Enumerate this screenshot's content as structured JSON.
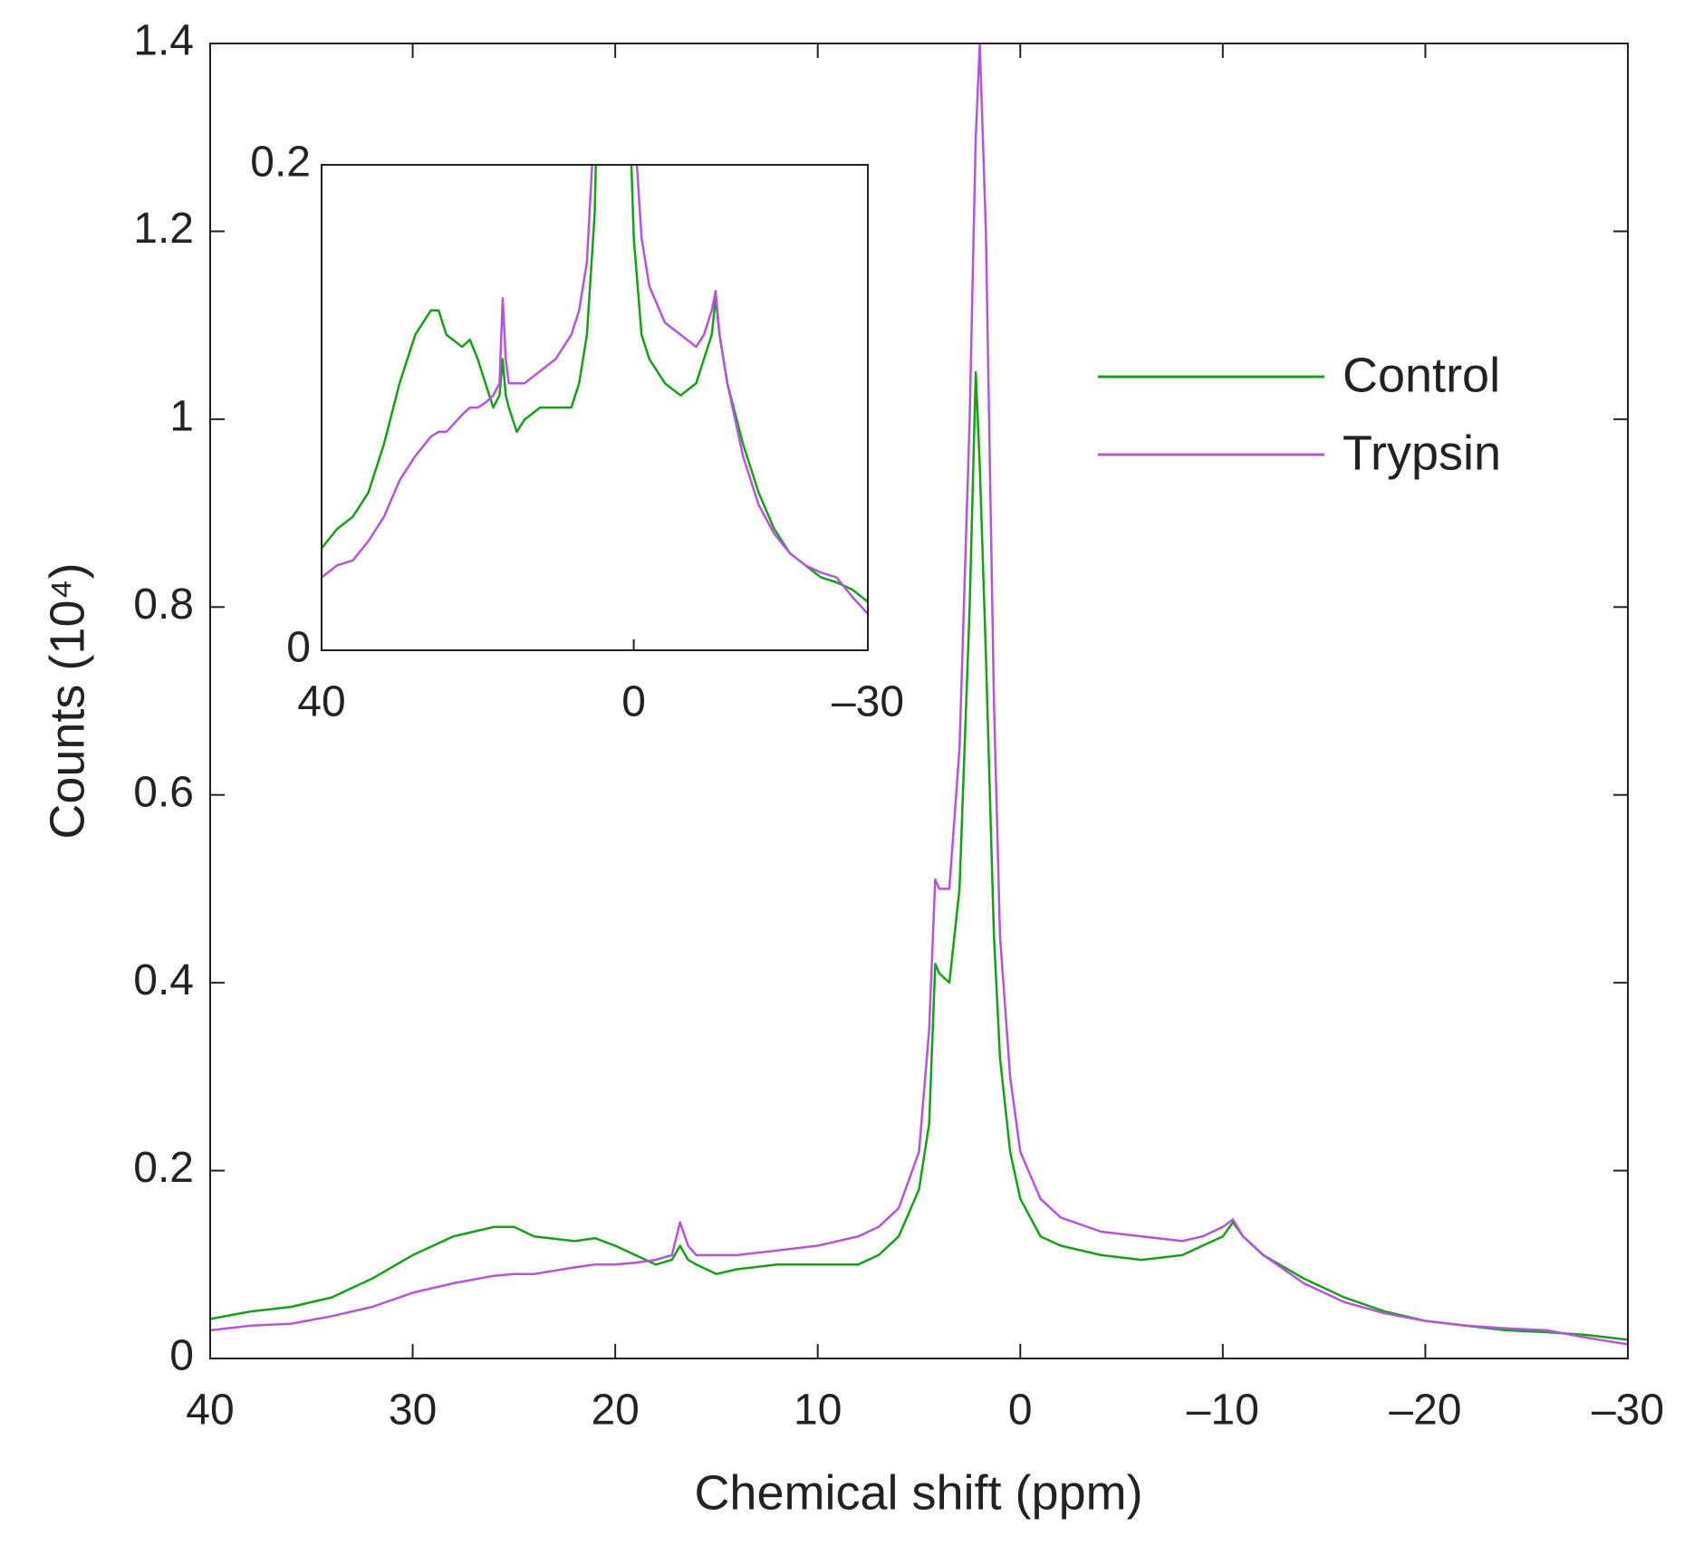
{
  "chart_data": [
    {
      "type": "line",
      "xlabel": "Chemical shift (ppm)",
      "ylabel": "Counts (10⁴)",
      "x": [
        40,
        38,
        36,
        34,
        32,
        30,
        28,
        26,
        25,
        24,
        22,
        21,
        20,
        19,
        18,
        17.2,
        16.8,
        16.4,
        16,
        15,
        14,
        12,
        10,
        8,
        7,
        6,
        5,
        4.5,
        4.2,
        4,
        3.5,
        3,
        2.5,
        2.2,
        2,
        1.7,
        1.3,
        1,
        0.5,
        0,
        -1,
        -2,
        -4,
        -6,
        -8,
        -9,
        -10,
        -10.5,
        -11,
        -12,
        -14,
        -16,
        -18,
        -20,
        -22,
        -24,
        -26,
        -28,
        -30
      ],
      "series": [
        {
          "name": "Control",
          "color": "#16a016",
          "values": [
            0.042,
            0.05,
            0.055,
            0.065,
            0.085,
            0.11,
            0.13,
            0.14,
            0.14,
            0.13,
            0.125,
            0.128,
            0.12,
            0.11,
            0.1,
            0.105,
            0.12,
            0.105,
            0.1,
            0.09,
            0.095,
            0.1,
            0.1,
            0.1,
            0.11,
            0.13,
            0.18,
            0.25,
            0.42,
            0.41,
            0.4,
            0.5,
            0.8,
            1.05,
            0.95,
            0.75,
            0.45,
            0.32,
            0.22,
            0.17,
            0.13,
            0.12,
            0.11,
            0.105,
            0.11,
            0.12,
            0.13,
            0.145,
            0.13,
            0.11,
            0.085,
            0.065,
            0.05,
            0.04,
            0.035,
            0.03,
            0.028,
            0.025,
            0.02
          ]
        },
        {
          "name": "Trypsin",
          "color": "#b455dc",
          "values": [
            0.03,
            0.035,
            0.037,
            0.045,
            0.055,
            0.07,
            0.08,
            0.088,
            0.09,
            0.09,
            0.097,
            0.1,
            0.1,
            0.102,
            0.105,
            0.11,
            0.145,
            0.12,
            0.11,
            0.11,
            0.11,
            0.115,
            0.12,
            0.13,
            0.14,
            0.16,
            0.22,
            0.35,
            0.51,
            0.5,
            0.5,
            0.65,
            1.0,
            1.3,
            1.4,
            1.2,
            0.7,
            0.45,
            0.3,
            0.22,
            0.17,
            0.15,
            0.135,
            0.13,
            0.125,
            0.13,
            0.14,
            0.148,
            0.13,
            0.11,
            0.08,
            0.06,
            0.048,
            0.04,
            0.035,
            0.032,
            0.03,
            0.022,
            0.015
          ]
        }
      ],
      "xlim": [
        40,
        -30
      ],
      "xticks": [
        40,
        30,
        20,
        10,
        0,
        {
          "value": -10,
          "label": "–10"
        },
        {
          "value": -20,
          "label": "–20"
        },
        {
          "value": -30,
          "label": "–30"
        }
      ],
      "ylim": [
        0,
        1.4
      ],
      "yticks": [
        0,
        0.2,
        0.4,
        0.6,
        0.8,
        1,
        1.2,
        1.4
      ]
    },
    {
      "type": "line",
      "xlim": [
        40,
        -30
      ],
      "xticks": [
        40,
        0,
        {
          "value": -30,
          "label": "–30"
        }
      ],
      "ylim": [
        0,
        0.2
      ],
      "yticks": [
        0,
        0.2
      ]
    }
  ]
}
